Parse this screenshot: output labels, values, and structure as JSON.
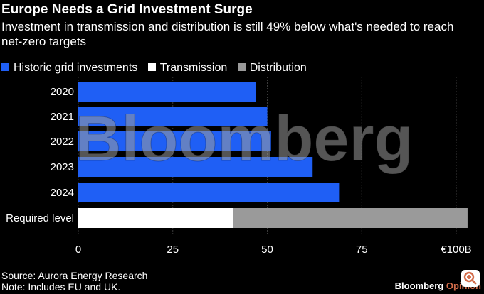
{
  "header": {
    "title": "Europe Needs a Grid Investment Surge",
    "subtitle": "Investment in transmission and distribution is still 49% below what's needed to reach net-zero targets"
  },
  "legend": [
    {
      "label": "Historic grid investments",
      "color": "#1f5ff5"
    },
    {
      "label": "Transmission",
      "color": "#ffffff"
    },
    {
      "label": "Distribution",
      "color": "#9a9a9a"
    }
  ],
  "chart_data": {
    "type": "bar",
    "orientation": "horizontal",
    "categories": [
      "2020",
      "2021",
      "2022",
      "2023",
      "2024",
      "Required level"
    ],
    "series": [
      {
        "name": "Historic grid investments",
        "values": [
          47,
          50,
          51,
          62,
          69,
          null
        ],
        "color": "#1f5ff5"
      },
      {
        "name": "Transmission",
        "values": [
          null,
          null,
          null,
          null,
          null,
          41
        ],
        "color": "#ffffff"
      },
      {
        "name": "Distribution",
        "values": [
          null,
          null,
          null,
          null,
          null,
          62
        ],
        "color": "#9a9a9a"
      }
    ],
    "stacked": true,
    "xlim": [
      0,
      100
    ],
    "xticks": [
      0,
      25,
      50,
      75,
      100
    ],
    "xtick_labels": [
      "0",
      "25",
      "50",
      "75",
      "€100B"
    ],
    "grid": true,
    "legend_position": "top-left"
  },
  "watermark": "Bloomberg",
  "footer": {
    "source": "Source: Aurora Energy Research",
    "note": "Note: Includes EU and UK.",
    "brand_main": "Bloomberg",
    "brand_accent": "Opinion"
  },
  "zoom_icon": "zoom-in-icon"
}
